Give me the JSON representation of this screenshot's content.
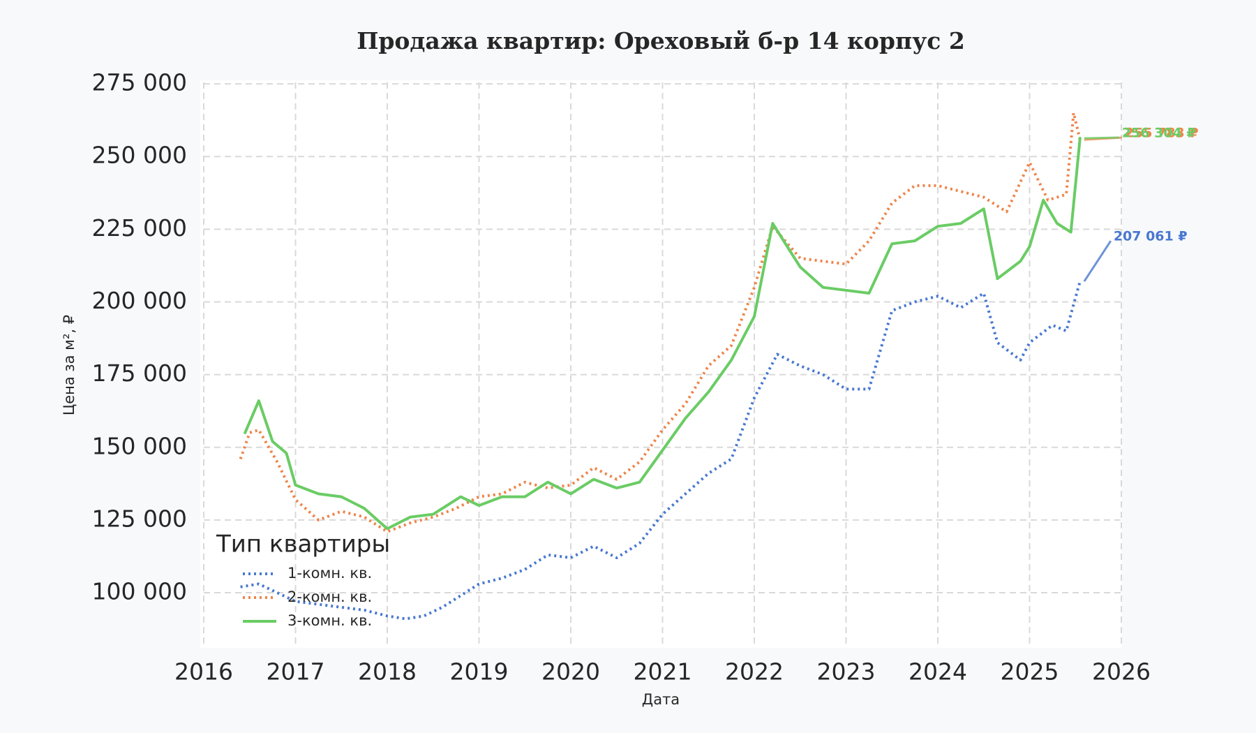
{
  "chart_data": {
    "type": "line",
    "title": "Продажа квартир: Ореховый б-р 14 корпус 2",
    "x_label": "Дата",
    "y_label": "Цена за м², ₽",
    "legend_title": "Тип квартиры",
    "legend_position": "lower left",
    "grid": true,
    "xlim": [
      2016,
      2026
    ],
    "xticks": [
      2016,
      2017,
      2018,
      2019,
      2020,
      2021,
      2022,
      2023,
      2024,
      2025,
      2026
    ],
    "ylim": [
      82000,
      275500
    ],
    "yticks": [
      {
        "value": 100000,
        "label": "100 000"
      },
      {
        "value": 125000,
        "label": "125 000"
      },
      {
        "value": 150000,
        "label": "150 000"
      },
      {
        "value": 175000,
        "label": "175 000"
      },
      {
        "value": 200000,
        "label": "200 000"
      },
      {
        "value": 225000,
        "label": "225 000"
      },
      {
        "value": 250000,
        "label": "250 000"
      },
      {
        "value": 275000,
        "label": "275 000"
      }
    ],
    "series": [
      {
        "name": "1-комн. кв.",
        "color": "#4878d0",
        "dash": "dotted",
        "end_label": "207 061 ₽",
        "x": [
          2016.4,
          2016.6,
          2016.8,
          2017.0,
          2017.25,
          2017.5,
          2017.75,
          2018.0,
          2018.2,
          2018.4,
          2018.6,
          2018.8,
          2019.0,
          2019.25,
          2019.5,
          2019.75,
          2020.0,
          2020.25,
          2020.5,
          2020.75,
          2021.0,
          2021.25,
          2021.5,
          2021.75,
          2022.0,
          2022.25,
          2022.5,
          2022.75,
          2023.0,
          2023.25,
          2023.5,
          2023.75,
          2024.0,
          2024.25,
          2024.5,
          2024.65,
          2024.9,
          2025.0,
          2025.25,
          2025.4,
          2025.55
        ],
        "values": [
          102000,
          103000,
          100000,
          97000,
          96000,
          95000,
          94000,
          92000,
          91000,
          92000,
          95000,
          99000,
          103000,
          105000,
          108000,
          113000,
          112000,
          116000,
          112000,
          117000,
          127000,
          134000,
          141000,
          146000,
          167000,
          182000,
          178000,
          175000,
          170000,
          170000,
          197000,
          200000,
          202000,
          198000,
          203000,
          186000,
          180000,
          186000,
          192000,
          190000,
          207061
        ]
      },
      {
        "name": "2-комн. кв.",
        "color": "#ee854a",
        "dash": "dotted",
        "end_label": "255 783 ₽",
        "x": [
          2016.4,
          2016.5,
          2016.6,
          2016.8,
          2017.0,
          2017.25,
          2017.5,
          2017.75,
          2018.0,
          2018.25,
          2018.5,
          2018.75,
          2019.0,
          2019.25,
          2019.5,
          2019.75,
          2020.0,
          2020.25,
          2020.5,
          2020.75,
          2021.0,
          2021.25,
          2021.5,
          2021.75,
          2022.0,
          2022.2,
          2022.5,
          2022.75,
          2023.0,
          2023.25,
          2023.5,
          2023.75,
          2024.0,
          2024.25,
          2024.5,
          2024.75,
          2025.0,
          2025.2,
          2025.4,
          2025.48,
          2025.55
        ],
        "values": [
          146000,
          155000,
          156000,
          145000,
          132000,
          125000,
          128000,
          126000,
          121000,
          124000,
          126000,
          129000,
          133000,
          134000,
          138000,
          136000,
          137000,
          143000,
          139000,
          145000,
          156000,
          165000,
          178000,
          185000,
          205000,
          226000,
          215000,
          214000,
          213000,
          221000,
          234000,
          240000,
          240000,
          238000,
          236000,
          231000,
          248000,
          235000,
          237000,
          265000,
          255783
        ]
      },
      {
        "name": "3-комн. кв.",
        "color": "#6acc64",
        "dash": "solid",
        "end_label": "256 304 ₽",
        "x": [
          2016.45,
          2016.6,
          2016.75,
          2016.9,
          2017.0,
          2017.25,
          2017.5,
          2017.75,
          2018.0,
          2018.25,
          2018.5,
          2018.8,
          2019.0,
          2019.25,
          2019.5,
          2019.75,
          2020.0,
          2020.25,
          2020.5,
          2020.75,
          2021.0,
          2021.25,
          2021.5,
          2021.75,
          2022.0,
          2022.2,
          2022.5,
          2022.75,
          2023.0,
          2023.25,
          2023.5,
          2023.75,
          2024.0,
          2024.25,
          2024.5,
          2024.65,
          2024.9,
          2025.0,
          2025.15,
          2025.3,
          2025.45,
          2025.55
        ],
        "values": [
          155000,
          166000,
          152000,
          148000,
          137000,
          134000,
          133000,
          129000,
          122000,
          126000,
          127000,
          133000,
          130000,
          133000,
          133000,
          138000,
          134000,
          139000,
          136000,
          138000,
          149000,
          160000,
          169000,
          180000,
          195000,
          227000,
          212000,
          205000,
          204000,
          203000,
          220000,
          221000,
          226000,
          227000,
          232000,
          208000,
          214000,
          219000,
          235000,
          227000,
          224000,
          256304
        ]
      }
    ]
  }
}
